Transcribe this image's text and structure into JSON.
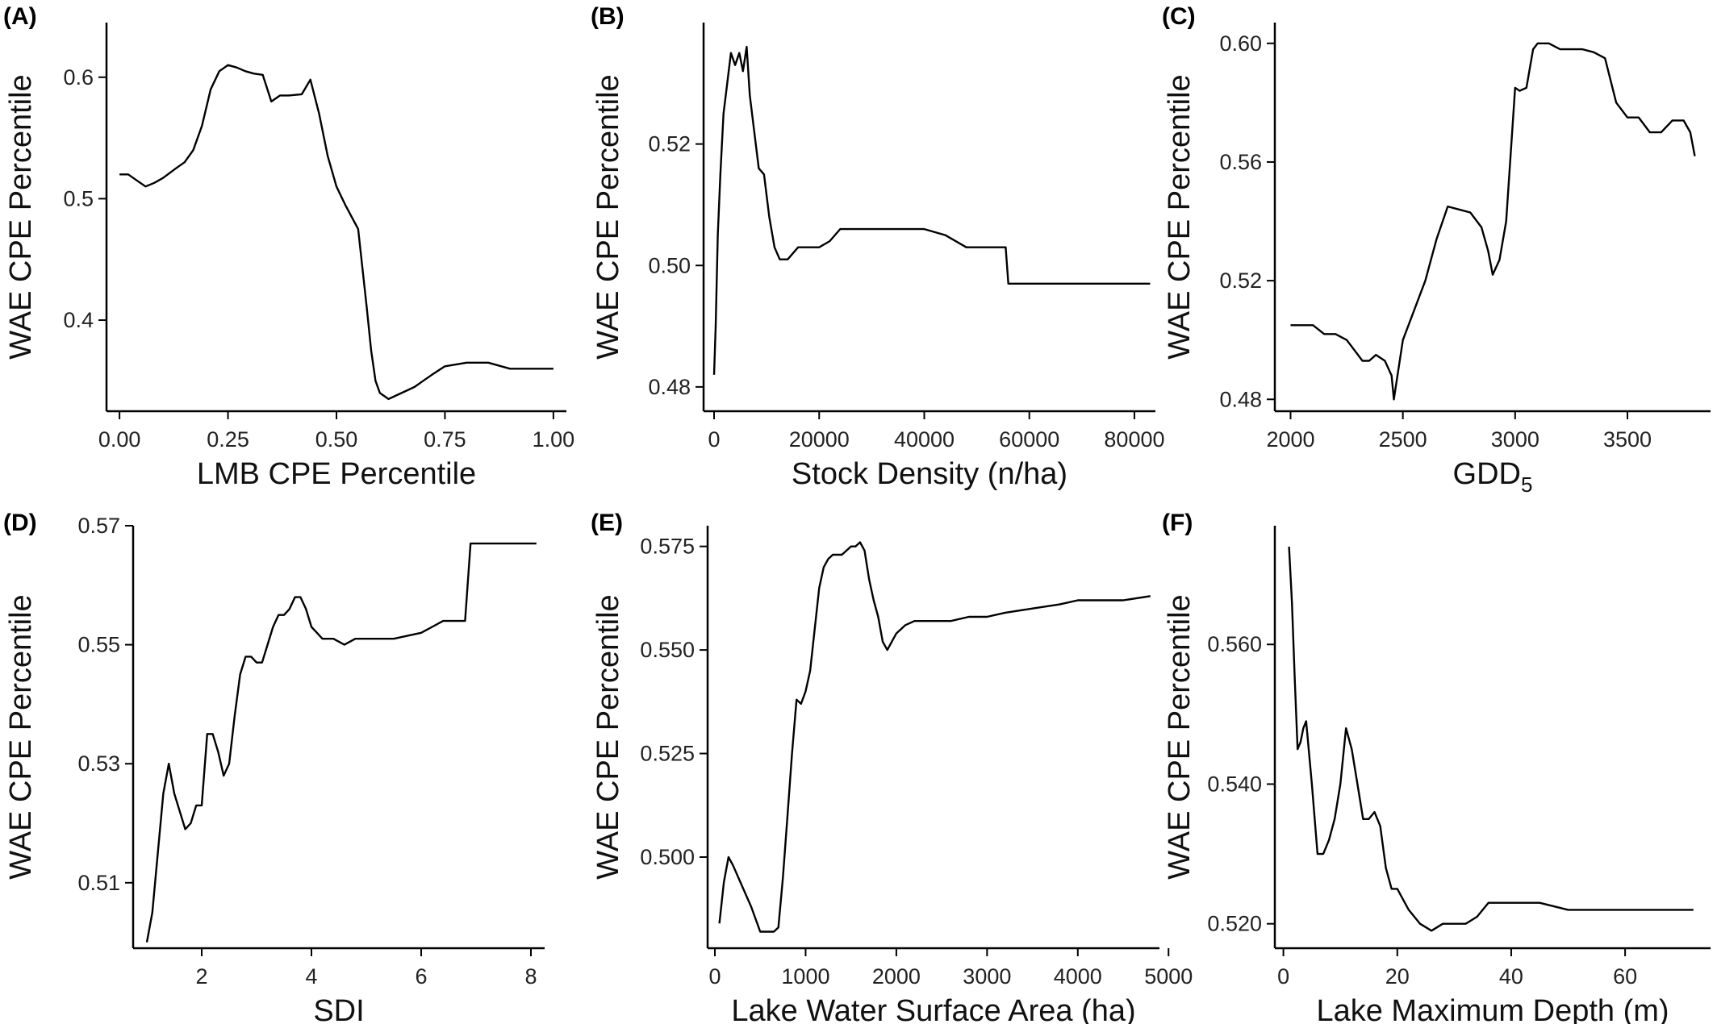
{
  "chart_data": [
    {
      "panel": "(A)",
      "type": "line",
      "xlabel": "LMB CPE Percentile",
      "ylabel": "WAE CPE Percentile",
      "xlim": [
        -0.03,
        1.03
      ],
      "ylim": [
        0.325,
        0.645
      ],
      "xticks": [
        0,
        0.25,
        0.5,
        0.75,
        1.0
      ],
      "xtick_labels": [
        "0.00",
        "0.25",
        "0.50",
        "0.75",
        "1.00"
      ],
      "yticks": [
        0.4,
        0.5,
        0.6
      ],
      "ytick_labels": [
        "0.4",
        "0.5",
        "0.6"
      ],
      "x": [
        0.0,
        0.02,
        0.04,
        0.06,
        0.08,
        0.1,
        0.13,
        0.15,
        0.17,
        0.19,
        0.21,
        0.23,
        0.25,
        0.27,
        0.29,
        0.31,
        0.33,
        0.35,
        0.37,
        0.39,
        0.42,
        0.44,
        0.46,
        0.48,
        0.5,
        0.52,
        0.55,
        0.57,
        0.58,
        0.59,
        0.6,
        0.62,
        0.65,
        0.68,
        0.7,
        0.72,
        0.75,
        0.8,
        0.85,
        0.9,
        0.95,
        1.0
      ],
      "y": [
        0.52,
        0.52,
        0.515,
        0.51,
        0.513,
        0.517,
        0.525,
        0.53,
        0.54,
        0.56,
        0.59,
        0.605,
        0.61,
        0.608,
        0.605,
        0.603,
        0.602,
        0.58,
        0.585,
        0.585,
        0.586,
        0.598,
        0.57,
        0.535,
        0.51,
        0.495,
        0.475,
        0.41,
        0.375,
        0.35,
        0.34,
        0.335,
        0.34,
        0.345,
        0.35,
        0.355,
        0.362,
        0.365,
        0.365,
        0.36,
        0.36,
        0.36
      ]
    },
    {
      "panel": "(B)",
      "type": "line",
      "xlabel": "Stock Density (n/ha)",
      "ylabel": "WAE CPE Percentile",
      "xlim": [
        -2000,
        84000
      ],
      "ylim": [
        0.476,
        0.54
      ],
      "xticks": [
        0,
        20000,
        40000,
        60000,
        80000
      ],
      "xtick_labels": [
        "0",
        "20000",
        "40000",
        "60000",
        "80000"
      ],
      "yticks": [
        0.48,
        0.5,
        0.52
      ],
      "ytick_labels": [
        "0.48",
        "0.50",
        "0.52"
      ],
      "x": [
        0,
        300,
        700,
        1200,
        1800,
        2500,
        3200,
        4000,
        4800,
        5500,
        6200,
        6800,
        7500,
        8500,
        9500,
        10500,
        11500,
        12500,
        14000,
        16000,
        18000,
        20000,
        22000,
        24000,
        26000,
        30000,
        35000,
        40000,
        44000,
        48000,
        52000,
        55500,
        56000,
        60000,
        65000,
        70000,
        75000,
        80000,
        83000
      ],
      "y": [
        0.482,
        0.49,
        0.505,
        0.515,
        0.525,
        0.53,
        0.535,
        0.533,
        0.535,
        0.532,
        0.536,
        0.528,
        0.523,
        0.516,
        0.515,
        0.508,
        0.503,
        0.501,
        0.501,
        0.503,
        0.503,
        0.503,
        0.504,
        0.506,
        0.506,
        0.506,
        0.506,
        0.506,
        0.505,
        0.503,
        0.503,
        0.503,
        0.497,
        0.497,
        0.497,
        0.497,
        0.497,
        0.497,
        0.497
      ]
    },
    {
      "panel": "(C)",
      "type": "line",
      "xlabel": "GDD",
      "xlabel_sub": "5",
      "ylabel": "WAE CPE Percentile",
      "xlim": [
        1930,
        3870
      ],
      "ylim": [
        0.476,
        0.607
      ],
      "xticks": [
        2000,
        2500,
        3000,
        3500
      ],
      "xtick_labels": [
        "2000",
        "2500",
        "3000",
        "3500"
      ],
      "yticks": [
        0.48,
        0.52,
        0.56,
        0.6
      ],
      "ytick_labels": [
        "0.48",
        "0.52",
        "0.56",
        "0.60"
      ],
      "x": [
        2000,
        2050,
        2100,
        2150,
        2200,
        2250,
        2280,
        2320,
        2350,
        2380,
        2420,
        2450,
        2460,
        2480,
        2500,
        2550,
        2600,
        2650,
        2700,
        2750,
        2800,
        2850,
        2880,
        2900,
        2930,
        2960,
        3000,
        3020,
        3050,
        3080,
        3100,
        3150,
        3200,
        3250,
        3300,
        3350,
        3400,
        3450,
        3500,
        3550,
        3600,
        3650,
        3700,
        3750,
        3780,
        3800
      ],
      "y": [
        0.505,
        0.505,
        0.505,
        0.502,
        0.502,
        0.5,
        0.497,
        0.493,
        0.493,
        0.495,
        0.493,
        0.488,
        0.48,
        0.49,
        0.5,
        0.51,
        0.52,
        0.534,
        0.545,
        0.544,
        0.543,
        0.538,
        0.53,
        0.522,
        0.527,
        0.54,
        0.585,
        0.584,
        0.585,
        0.598,
        0.6,
        0.6,
        0.598,
        0.598,
        0.598,
        0.597,
        0.595,
        0.58,
        0.575,
        0.575,
        0.57,
        0.57,
        0.574,
        0.574,
        0.57,
        0.562
      ]
    },
    {
      "panel": "(D)",
      "type": "line",
      "xlabel": "SDI",
      "ylabel": "WAE CPE Percentile",
      "xlim": [
        0.75,
        8.25
      ],
      "ylim": [
        0.499,
        0.57
      ],
      "xticks": [
        2,
        4,
        6,
        8
      ],
      "xtick_labels": [
        "2",
        "4",
        "6",
        "8"
      ],
      "yticks": [
        0.51,
        0.53,
        0.55,
        0.57
      ],
      "ytick_labels": [
        "0.51",
        "0.53",
        "0.55",
        "0.57"
      ],
      "x": [
        1.0,
        1.1,
        1.2,
        1.3,
        1.4,
        1.5,
        1.6,
        1.7,
        1.8,
        1.9,
        2.0,
        2.1,
        2.2,
        2.3,
        2.4,
        2.5,
        2.6,
        2.7,
        2.8,
        2.9,
        3.0,
        3.1,
        3.2,
        3.3,
        3.4,
        3.5,
        3.6,
        3.7,
        3.8,
        3.9,
        4.0,
        4.1,
        4.2,
        4.4,
        4.6,
        4.8,
        5.0,
        5.5,
        6.0,
        6.2,
        6.4,
        6.5,
        6.8,
        6.9,
        7.0,
        7.5,
        8.1
      ],
      "y": [
        0.5,
        0.505,
        0.515,
        0.525,
        0.53,
        0.525,
        0.522,
        0.519,
        0.52,
        0.523,
        0.523,
        0.535,
        0.535,
        0.532,
        0.528,
        0.53,
        0.538,
        0.545,
        0.548,
        0.548,
        0.547,
        0.547,
        0.55,
        0.553,
        0.555,
        0.555,
        0.556,
        0.558,
        0.558,
        0.556,
        0.553,
        0.552,
        0.551,
        0.551,
        0.55,
        0.551,
        0.551,
        0.551,
        0.552,
        0.553,
        0.554,
        0.554,
        0.554,
        0.567,
        0.567,
        0.567,
        0.567
      ]
    },
    {
      "panel": "(E)",
      "type": "line",
      "xlabel": "Lake Water Surface Area (ha)",
      "ylabel": "WAE CPE Percentile",
      "xlim": [
        -80,
        4900
      ],
      "ylim": [
        0.478,
        0.58
      ],
      "xticks": [
        0,
        1000,
        2000,
        3000,
        4000,
        5000
      ],
      "xtick_labels": [
        "0",
        "1000",
        "2000",
        "3000",
        "4000",
        "5000"
      ],
      "yticks": [
        0.5,
        0.525,
        0.55,
        0.575
      ],
      "ytick_labels": [
        "0.500",
        "0.525",
        "0.550",
        "0.575"
      ],
      "x": [
        50,
        100,
        150,
        200,
        300,
        400,
        500,
        550,
        600,
        650,
        700,
        750,
        800,
        850,
        900,
        950,
        1000,
        1050,
        1100,
        1150,
        1200,
        1250,
        1300,
        1350,
        1400,
        1500,
        1550,
        1600,
        1650,
        1700,
        1750,
        1800,
        1850,
        1900,
        1950,
        2000,
        2100,
        2200,
        2400,
        2600,
        2800,
        3000,
        3200,
        3500,
        3800,
        4000,
        4200,
        4500,
        4800
      ],
      "y": [
        0.484,
        0.494,
        0.5,
        0.498,
        0.493,
        0.488,
        0.482,
        0.482,
        0.482,
        0.482,
        0.483,
        0.495,
        0.51,
        0.525,
        0.538,
        0.537,
        0.54,
        0.545,
        0.555,
        0.565,
        0.57,
        0.572,
        0.573,
        0.573,
        0.573,
        0.575,
        0.575,
        0.576,
        0.574,
        0.567,
        0.562,
        0.558,
        0.552,
        0.55,
        0.552,
        0.554,
        0.556,
        0.557,
        0.557,
        0.557,
        0.558,
        0.558,
        0.559,
        0.56,
        0.561,
        0.562,
        0.562,
        0.562,
        0.563
      ]
    },
    {
      "panel": "(F)",
      "type": "line",
      "xlabel": "Lake Maximum Depth (m)",
      "ylabel": "WAE CPE Percentile",
      "xlim": [
        -1.5,
        75
      ],
      "ylim": [
        0.5165,
        0.577
      ],
      "xticks": [
        0,
        20,
        40,
        60
      ],
      "xtick_labels": [
        "0",
        "20",
        "40",
        "60"
      ],
      "yticks": [
        0.52,
        0.54,
        0.56
      ],
      "ytick_labels": [
        "0.520",
        "0.540",
        "0.560"
      ],
      "x": [
        1,
        1.5,
        2,
        2.5,
        3,
        3.5,
        4,
        5,
        6,
        7,
        8,
        9,
        10,
        11,
        12,
        13,
        14,
        15,
        16,
        17,
        18,
        19,
        20,
        22,
        24,
        26,
        28,
        30,
        32,
        34,
        36,
        40,
        45,
        50,
        55,
        60,
        65,
        70,
        72
      ],
      "y": [
        0.574,
        0.566,
        0.555,
        0.545,
        0.546,
        0.548,
        0.549,
        0.54,
        0.53,
        0.53,
        0.532,
        0.535,
        0.54,
        0.548,
        0.545,
        0.54,
        0.535,
        0.535,
        0.536,
        0.534,
        0.528,
        0.525,
        0.525,
        0.522,
        0.52,
        0.519,
        0.52,
        0.52,
        0.52,
        0.521,
        0.523,
        0.523,
        0.523,
        0.522,
        0.522,
        0.522,
        0.522,
        0.522,
        0.522
      ]
    }
  ]
}
